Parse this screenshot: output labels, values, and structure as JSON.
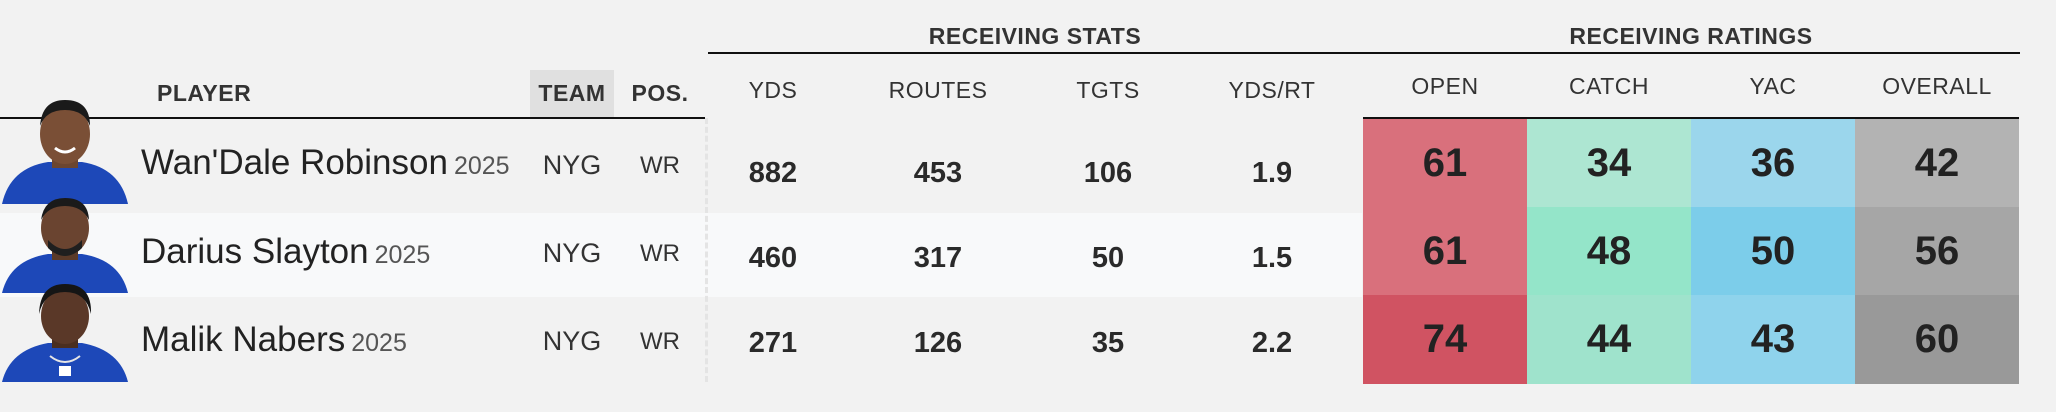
{
  "groups": {
    "stats_title": "RECEIVING STATS",
    "ratings_title": "RECEIVING RATINGS"
  },
  "headers": {
    "player": "PLAYER",
    "team": "TEAM",
    "pos": "POS.",
    "yds": "YDS",
    "routes": "ROUTES",
    "tgts": "TGTS",
    "yds_rt": "YDS/RT",
    "open": "OPEN",
    "catch": "CATCH",
    "yac": "YAC",
    "overall": "OVERALL"
  },
  "rows": [
    {
      "name": "Wan'Dale Robinson",
      "year": "2025",
      "team": "NYG",
      "pos": "WR",
      "yds": "882",
      "routes": "453",
      "tgts": "106",
      "yds_rt": "1.9",
      "open": "61",
      "catch": "34",
      "yac": "36",
      "overall": "42"
    },
    {
      "name": "Darius Slayton",
      "year": "2025",
      "team": "NYG",
      "pos": "WR",
      "yds": "460",
      "routes": "317",
      "tgts": "50",
      "yds_rt": "1.5",
      "open": "61",
      "catch": "48",
      "yac": "50",
      "overall": "56"
    },
    {
      "name": "Malik Nabers",
      "year": "2025",
      "team": "NYG",
      "pos": "WR",
      "yds": "271",
      "routes": "126",
      "tgts": "35",
      "yds_rt": "2.2",
      "open": "74",
      "catch": "44",
      "yac": "43",
      "overall": "60"
    }
  ],
  "colors": {
    "open": [
      "#d9707c",
      "#d9707c",
      "#d05362"
    ],
    "catch": [
      "#ade6d2",
      "#94e5c9",
      "#9fe3cc"
    ],
    "yac": [
      "#9bd6ec",
      "#7ccdea",
      "#8fd3ec"
    ],
    "overall": [
      "#b3b3b3",
      "#a6a6a6",
      "#999999"
    ]
  }
}
